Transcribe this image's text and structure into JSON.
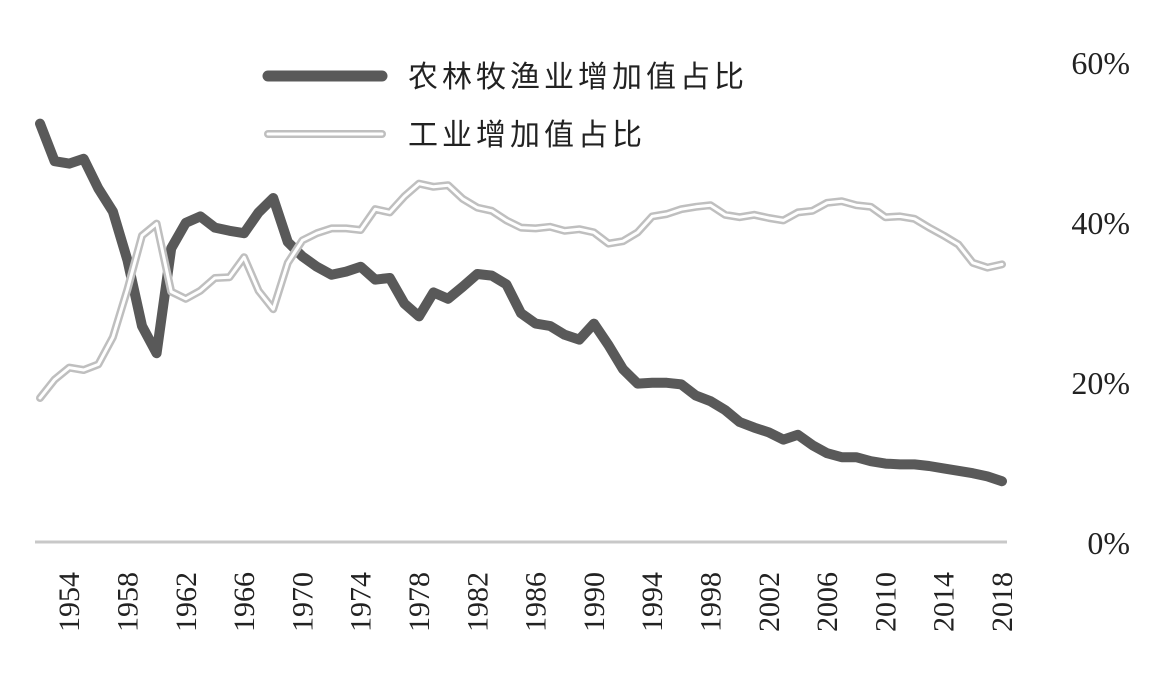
{
  "chart_data": {
    "type": "line",
    "y_axis_side": "right",
    "ylim": [
      0,
      60
    ],
    "y_ticks": [
      {
        "value": 60,
        "label": "60%"
      },
      {
        "value": 40,
        "label": "40%"
      },
      {
        "value": 20,
        "label": "20%"
      },
      {
        "value": 0,
        "label": "0%"
      }
    ],
    "x_ticks": [
      "1954",
      "1958",
      "1962",
      "1966",
      "1970",
      "1974",
      "1978",
      "1982",
      "1986",
      "1990",
      "1994",
      "1998",
      "2002",
      "2006",
      "2010",
      "2014",
      "2018"
    ],
    "legend_position": "top-left",
    "grid": false,
    "x": [
      1952,
      1953,
      1954,
      1955,
      1956,
      1957,
      1958,
      1959,
      1960,
      1961,
      1962,
      1963,
      1964,
      1965,
      1966,
      1967,
      1968,
      1969,
      1970,
      1971,
      1972,
      1973,
      1974,
      1975,
      1976,
      1977,
      1978,
      1979,
      1980,
      1981,
      1982,
      1983,
      1984,
      1985,
      1986,
      1987,
      1988,
      1989,
      1990,
      1991,
      1992,
      1993,
      1994,
      1995,
      1996,
      1997,
      1998,
      1999,
      2000,
      2001,
      2002,
      2003,
      2004,
      2005,
      2006,
      2007,
      2008,
      2009,
      2010,
      2011,
      2012,
      2013,
      2014,
      2015,
      2016,
      2017,
      2018
    ],
    "series": [
      {
        "name": "农林牧渔业增加值占比",
        "color": "#595959",
        "style": "thick-solid",
        "values": [
          52.3,
          47.6,
          47.3,
          47.9,
          44.2,
          41.3,
          35.2,
          27.0,
          23.6,
          36.7,
          39.9,
          40.7,
          39.3,
          38.9,
          38.6,
          41.2,
          43.0,
          37.5,
          35.7,
          34.4,
          33.4,
          33.8,
          34.4,
          32.8,
          33.0,
          29.8,
          28.2,
          31.2,
          30.4,
          31.9,
          33.5,
          33.3,
          32.2,
          28.6,
          27.3,
          27.0,
          25.9,
          25.3,
          27.3,
          24.6,
          21.6,
          19.8,
          19.9,
          19.9,
          19.7,
          18.3,
          17.6,
          16.5,
          15.0,
          14.3,
          13.7,
          12.8,
          13.4,
          12.1,
          11.1,
          10.6,
          10.6,
          10.1,
          9.8,
          9.7,
          9.7,
          9.5,
          9.2,
          8.9,
          8.6,
          8.2,
          7.6
        ]
      },
      {
        "name": "工业增加值占比",
        "color": "#bfbfbf",
        "style": "double-outline",
        "values": [
          18.0,
          20.3,
          21.8,
          21.5,
          22.2,
          25.6,
          31.6,
          38.3,
          39.8,
          31.3,
          30.4,
          31.4,
          33.0,
          33.1,
          35.6,
          31.4,
          29.1,
          34.9,
          37.7,
          38.6,
          39.2,
          39.2,
          39.0,
          41.6,
          41.2,
          43.2,
          44.8,
          44.4,
          44.6,
          42.9,
          41.8,
          41.4,
          40.2,
          39.3,
          39.2,
          39.4,
          38.9,
          39.1,
          38.7,
          37.3,
          37.6,
          38.7,
          40.7,
          41.0,
          41.6,
          41.9,
          42.1,
          40.9,
          40.6,
          40.9,
          40.5,
          40.2,
          41.2,
          41.4,
          42.4,
          42.6,
          42.1,
          41.9,
          40.6,
          40.7,
          40.4,
          39.3,
          38.3,
          37.2,
          34.9,
          34.3,
          34.7
        ]
      }
    ]
  }
}
